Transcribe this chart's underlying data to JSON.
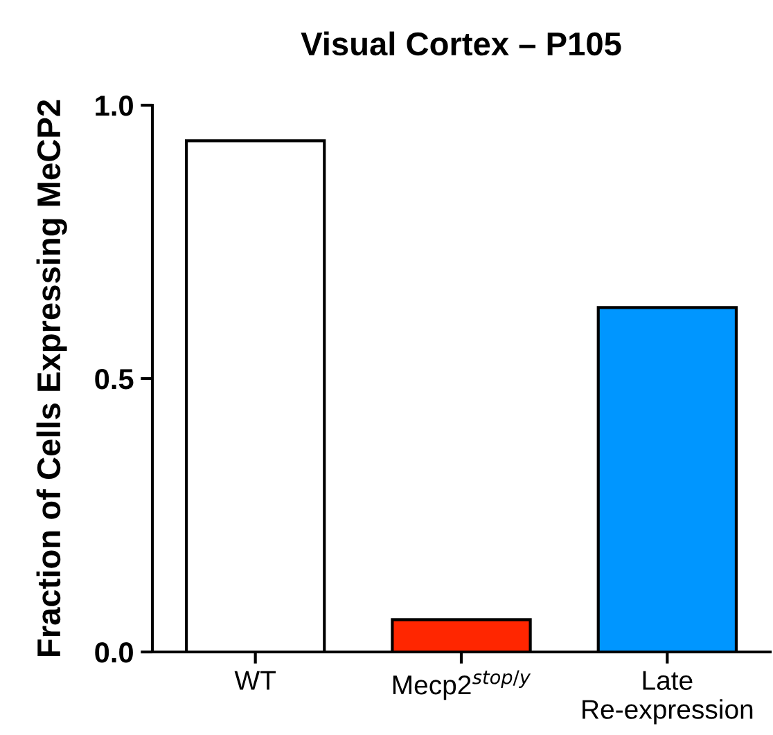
{
  "chart_data": {
    "type": "bar",
    "title": "Visual Cortex – P105",
    "ylabel": "Fraction of Cells Expressing MeCP2",
    "categories": [
      "WT",
      "Mecp2$^{stop/y}$",
      "Late\nRe-expression"
    ],
    "values": [
      0.935,
      0.059,
      0.63
    ],
    "colors": [
      "#ffffff",
      "#ff2600",
      "#0096ff"
    ],
    "ylim": [
      0,
      1.0
    ],
    "yticks": [
      {
        "value": 0,
        "label": "0.0"
      },
      {
        "value": 0.5,
        "label": "0.5"
      },
      {
        "value": 1.0,
        "label": "1.0"
      }
    ],
    "grid": false,
    "legend": false
  }
}
